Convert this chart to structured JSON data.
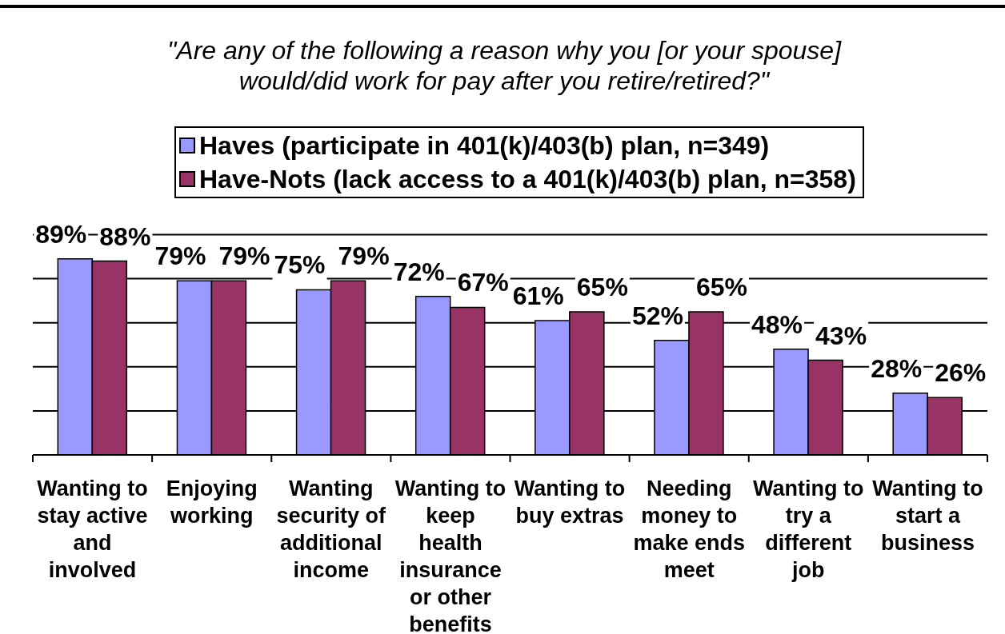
{
  "chart_data": {
    "type": "bar",
    "subtitle": "\"Are any of the following a reason why you [or your spouse] would/did work for pay after you retire/retired?\"",
    "categories": [
      "Wanting to stay active and involved",
      "Enjoying working",
      "Wanting security of additional income",
      "Wanting to keep health insurance or other benefits",
      "Wanting to buy extras",
      "Needing money to make ends meet",
      "Wanting to try a different job",
      "Wanting to start a business"
    ],
    "series": [
      {
        "name": "Haves (participate in 401(k)/403(b) plan, n=349)",
        "color": "#9999ff",
        "values": [
          89,
          79,
          75,
          72,
          61,
          52,
          48,
          28
        ],
        "value_labels": [
          "89%",
          "79%",
          "75%",
          "72%",
          "61%",
          "52%",
          "48%",
          "28%"
        ]
      },
      {
        "name": "Have-Nots (lack access to a 401(k)/403(b) plan, n=358)",
        "color": "#993366",
        "values": [
          88,
          79,
          79,
          67,
          65,
          65,
          43,
          26
        ],
        "value_labels": [
          "88%",
          "79%",
          "79%",
          "67%",
          "65%",
          "65%",
          "43%",
          "26%"
        ]
      }
    ],
    "ylim": [
      0,
      100
    ],
    "yticks": [
      {
        "value": 0,
        "label": null
      },
      {
        "value": 20,
        "label": null
      },
      {
        "value": 40,
        "label": null
      },
      {
        "value": 60,
        "label": null
      },
      {
        "value": 80,
        "label": null
      },
      {
        "value": 100,
        "label": null
      }
    ],
    "grid": "y",
    "legend": "top",
    "tick_labels": "x"
  }
}
